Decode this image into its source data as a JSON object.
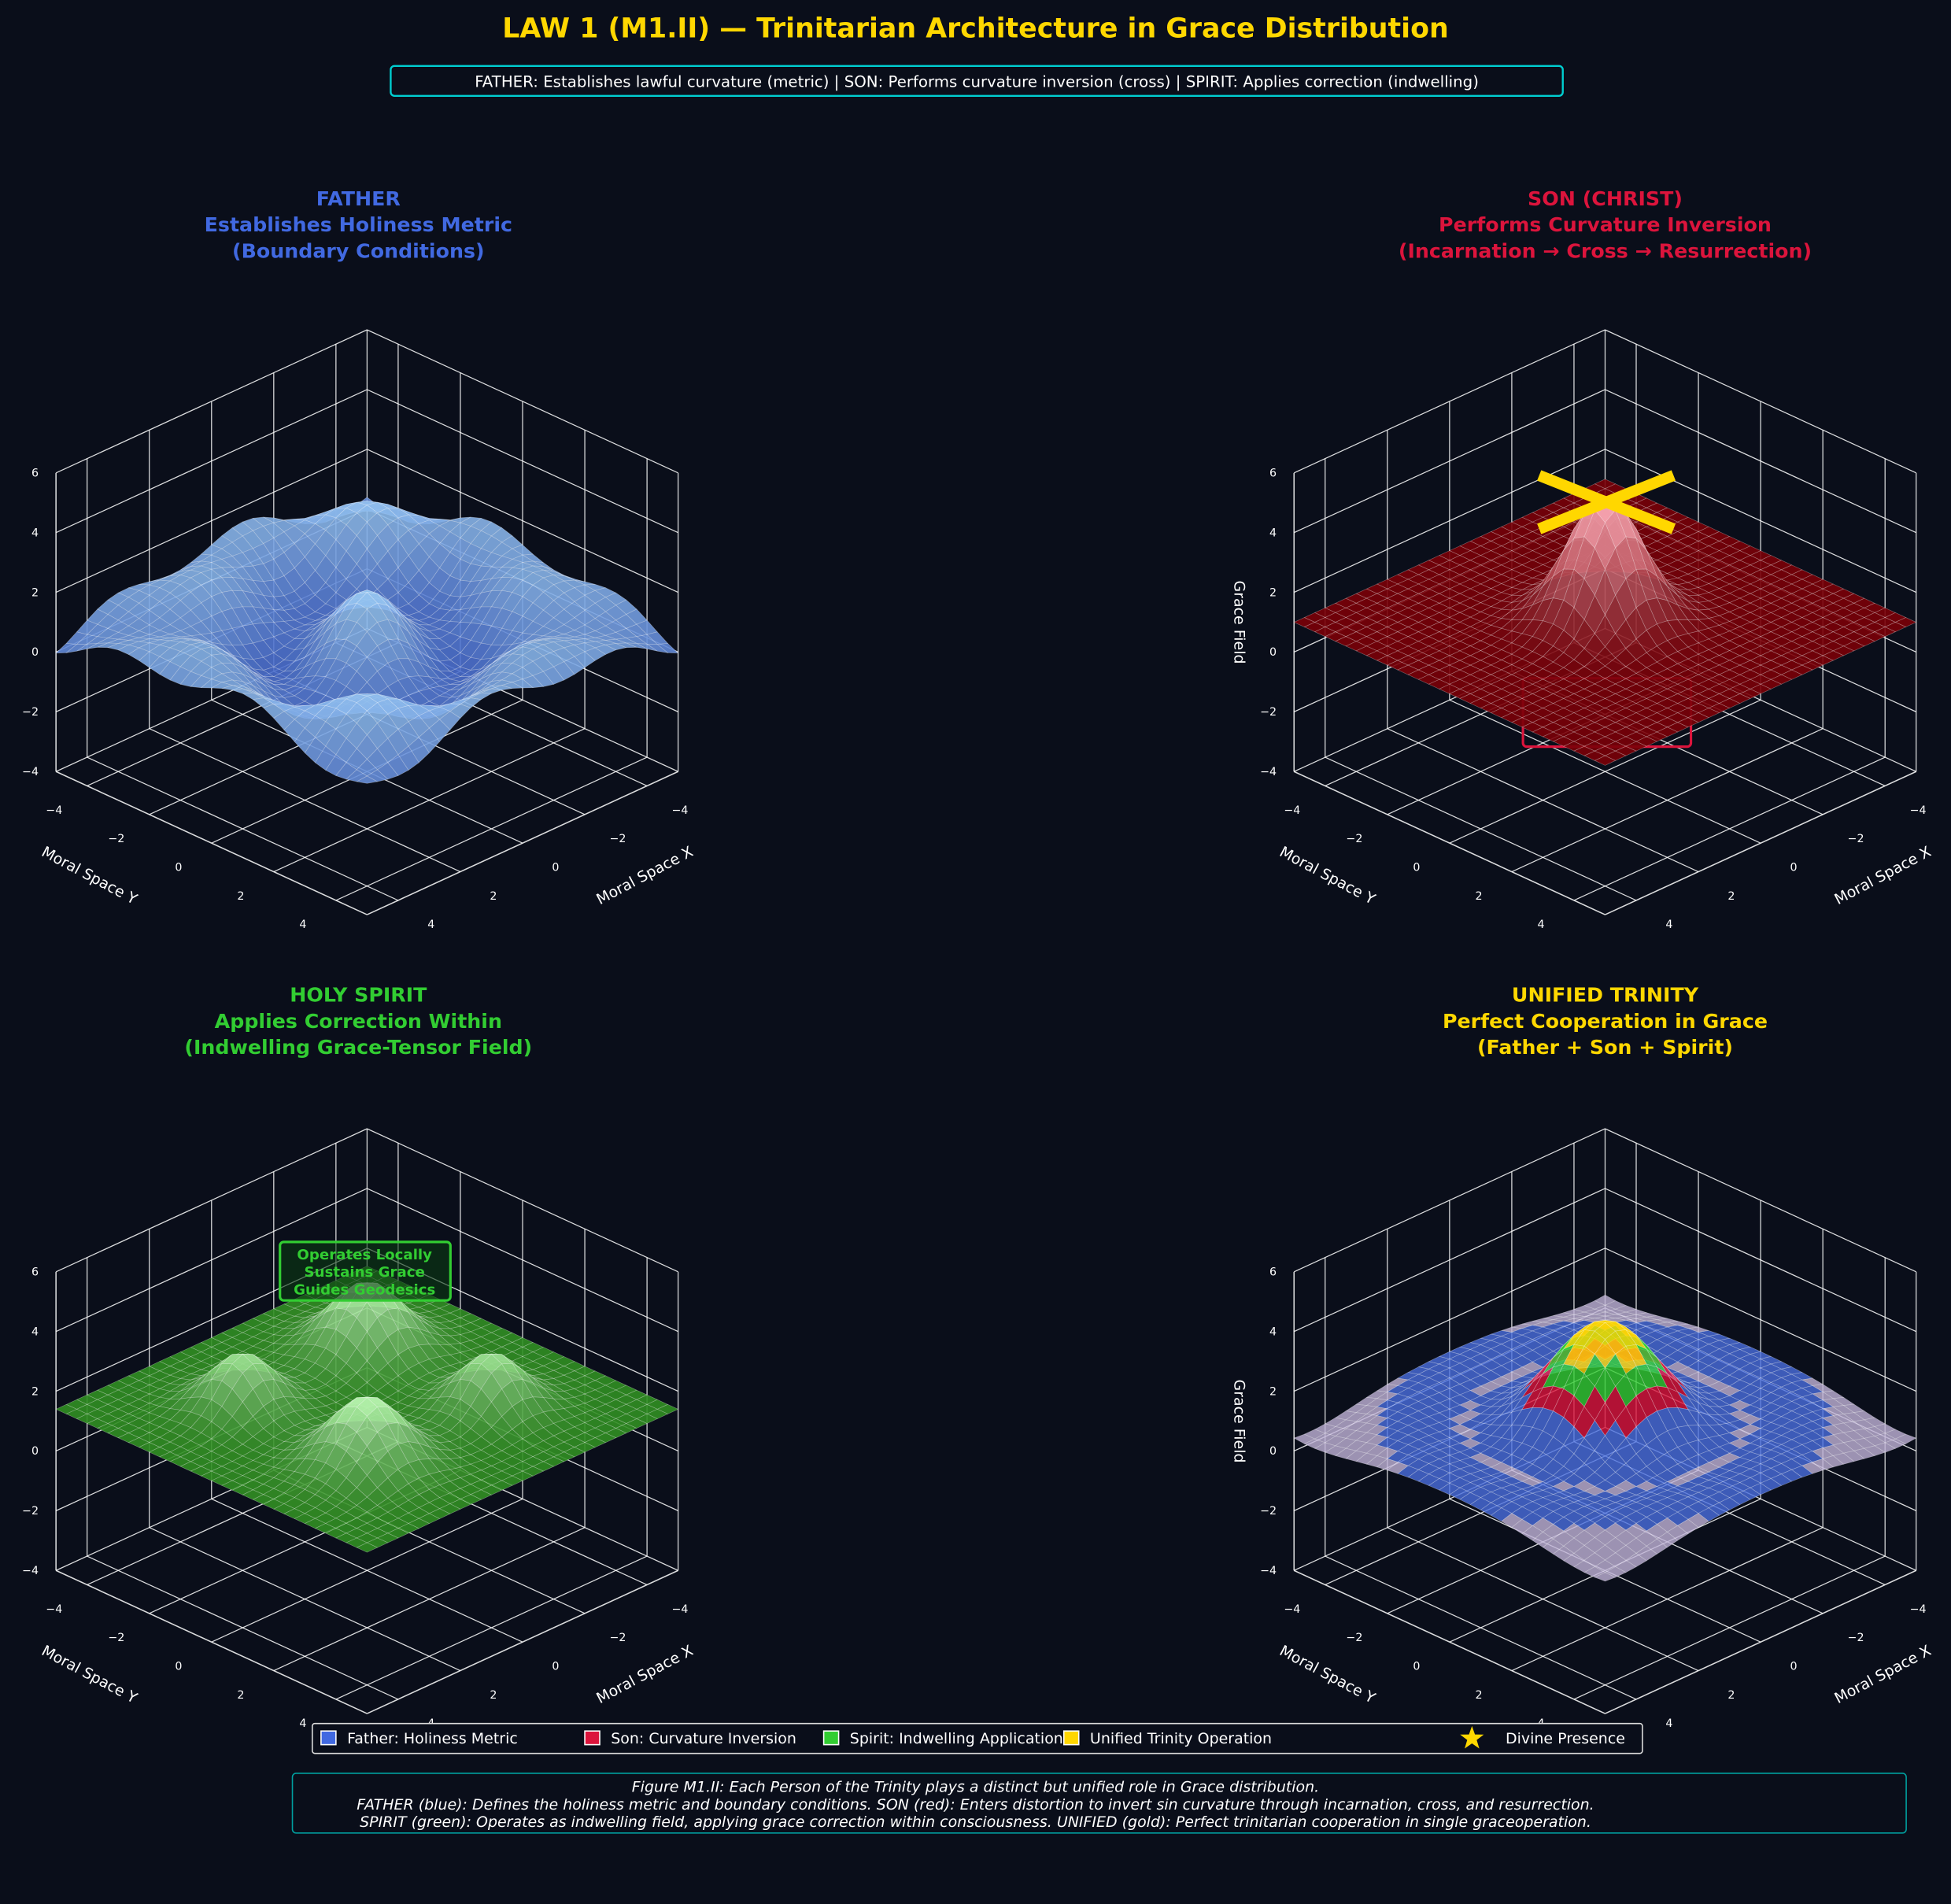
{
  "title": "LAW 1 (M1.II) — Trinitarian Architecture in Grace Distribution",
  "subtitle": "FATHER: Establishes lawful curvature (metric) | SON: Performs curvature inversion (cross) | SPIRIT: Applies correction (indwelling)",
  "colors": {
    "background": "#0a0e1a",
    "title": "#ffd700",
    "father": "#4169e1",
    "son": "#dc143c",
    "spirit": "#32cd32",
    "unified": "#ffd700",
    "accent_box": "#00ced1"
  },
  "chart_data": [
    {
      "type": "surface",
      "title": [
        "FATHER",
        "Establishes Holiness Metric",
        "(Boundary Conditions)"
      ],
      "color": "#4169e1",
      "xlabel": "Moral Space X",
      "ylabel": "Moral Space Y",
      "zlabel": "",
      "xticks": [
        "−4",
        "−2",
        "0",
        "2",
        "4"
      ],
      "yticks": [
        "−4",
        "−2",
        "0",
        "2",
        "4"
      ],
      "zticks": [
        "−4",
        "−2",
        "0",
        "2",
        "4",
        "6"
      ],
      "xlim": [
        -5,
        5
      ],
      "ylim": [
        -5,
        5
      ],
      "zlim": [
        -4,
        6
      ],
      "surface": "wavy radial ripples around z≈0.8, range ≈ −2.5 to 3"
    },
    {
      "type": "surface",
      "title": [
        "SON (CHRIST)",
        "Performs Curvature Inversion",
        "(Incarnation → Cross → Resurrection)"
      ],
      "color": "#dc143c",
      "xlabel": "Moral Space X",
      "ylabel": "Moral Space Y",
      "zlabel": "Grace Field",
      "xticks": [
        "−4",
        "−2",
        "0",
        "2",
        "4"
      ],
      "yticks": [
        "−4",
        "−2",
        "0",
        "2",
        "4"
      ],
      "zticks": [
        "−4",
        "−2",
        "0",
        "2",
        "4",
        "6"
      ],
      "xlim": [
        -5,
        5
      ],
      "ylim": [
        -5,
        5
      ],
      "zlim": [
        -4,
        6
      ],
      "surface": "flat plane z≈1 with central peak ≈5",
      "marker": "gold cross at peak"
    },
    {
      "type": "surface",
      "title": [
        "HOLY SPIRIT",
        "Applies Correction Within",
        "(Indwelling Grace-Tensor Field)"
      ],
      "color": "#32cd32",
      "xlabel": "Moral Space X",
      "ylabel": "Moral Space Y",
      "zlabel": "",
      "xticks": [
        "−4",
        "−2",
        "0",
        "2",
        "4"
      ],
      "yticks": [
        "−4",
        "−2",
        "0",
        "2",
        "4"
      ],
      "zticks": [
        "−4",
        "−2",
        "0",
        "2",
        "4",
        "6"
      ],
      "xlim": [
        -5,
        5
      ],
      "ylim": [
        -5,
        5
      ],
      "zlim": [
        -4,
        6
      ],
      "surface": "plane z≈1.5 with four local bumps",
      "annotation": [
        "Operates Locally",
        "Sustains Grace",
        "Guides Geodesics"
      ]
    },
    {
      "type": "surface",
      "title": [
        "UNIFIED TRINITY",
        "Perfect Cooperation in Grace",
        "(Father + Son + Spirit)"
      ],
      "color": "#ffd700",
      "xlabel": "Moral Space X",
      "ylabel": "Moral Space Y",
      "zlabel": "Grace Field",
      "xticks": [
        "−4",
        "−2",
        "0",
        "2",
        "4"
      ],
      "yticks": [
        "−4",
        "−2",
        "0",
        "2",
        "4"
      ],
      "zticks": [
        "−4",
        "−2",
        "0",
        "2",
        "4",
        "6"
      ],
      "xlim": [
        -5,
        5
      ],
      "ylim": [
        -5,
        5
      ],
      "zlim": [
        -4,
        6
      ],
      "surface": "combined field, central peak ≈4, bands gold/green/red/blue"
    }
  ],
  "caption": [
    "Figure M1.II: Each Person of the Trinity plays a distinct but unified role in Grace distribution.",
    "FATHER (blue): Defines the holiness metric and boundary conditions. SON (red): Enters distortion to invert sin curvature through incarnation, cross, and resurrection.",
    "SPIRIT (green): Operates as indwelling field, applying grace correction within consciousness. UNIFIED (gold): Perfect trinitarian cooperation in single graceoperation."
  ],
  "legend": [
    {
      "label": "Father: Holiness Metric",
      "color": "#4169e1",
      "icon": "square"
    },
    {
      "label": "Son: Curvature Inversion",
      "color": "#dc143c",
      "icon": "square"
    },
    {
      "label": "Spirit: Indwelling Application",
      "color": "#32cd32",
      "icon": "square"
    },
    {
      "label": "Unified Trinity Operation",
      "color": "#ffd700",
      "icon": "square"
    },
    {
      "label": "Divine Presence",
      "color": "#ffd700",
      "icon": "star-icon"
    }
  ]
}
